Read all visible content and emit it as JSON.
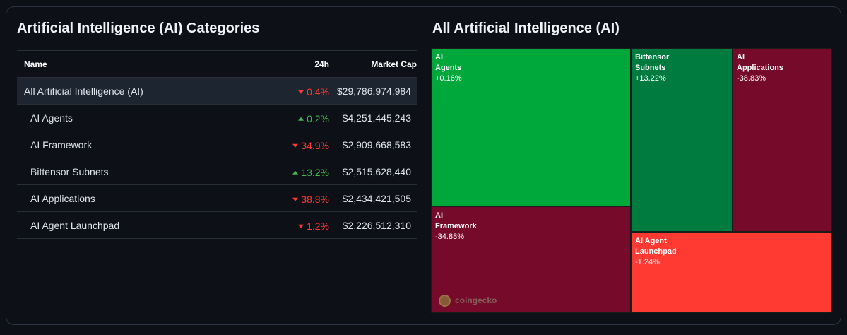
{
  "left_title": "Artificial Intelligence (AI) Categories",
  "right_title": "All Artificial Intelligence (AI)",
  "table": {
    "headers": {
      "name": "Name",
      "change": "24h",
      "market_cap": "Market Cap"
    },
    "rows": [
      {
        "name": "All Artificial Intelligence (AI)",
        "change": "0.4%",
        "direction": "down",
        "market_cap": "$29,786,974,984"
      },
      {
        "name": "AI Agents",
        "change": "0.2%",
        "direction": "up",
        "market_cap": "$4,251,445,243"
      },
      {
        "name": "AI Framework",
        "change": "34.9%",
        "direction": "down",
        "market_cap": "$2,909,668,583"
      },
      {
        "name": "Bittensor Subnets",
        "change": "13.2%",
        "direction": "up",
        "market_cap": "$2,515,628,440"
      },
      {
        "name": "AI Applications",
        "change": "38.8%",
        "direction": "down",
        "market_cap": "$2,434,421,505"
      },
      {
        "name": "AI Agent Launchpad",
        "change": "1.2%",
        "direction": "down",
        "market_cap": "$2,226,512,310"
      }
    ]
  },
  "treemap": {
    "tiles": [
      {
        "name": "AI\nAgents",
        "change": "+0.16%"
      },
      {
        "name": "Bittensor\nSubnets",
        "change": "+13.22%"
      },
      {
        "name": "AI\nApplications",
        "change": "-38.83%"
      },
      {
        "name": "AI\nFramework",
        "change": "-34.88%"
      },
      {
        "name": "AI Agent\nLaunchpad",
        "change": "-1.24%"
      }
    ],
    "watermark": "coingecko"
  },
  "colors": {
    "up": "#3fb950",
    "down": "#ff3a33",
    "tile_green_strong": "#00a83c",
    "tile_green_mid": "#007b40",
    "tile_red_dark": "#760a2b",
    "tile_red_bright": "#ff3a33"
  }
}
